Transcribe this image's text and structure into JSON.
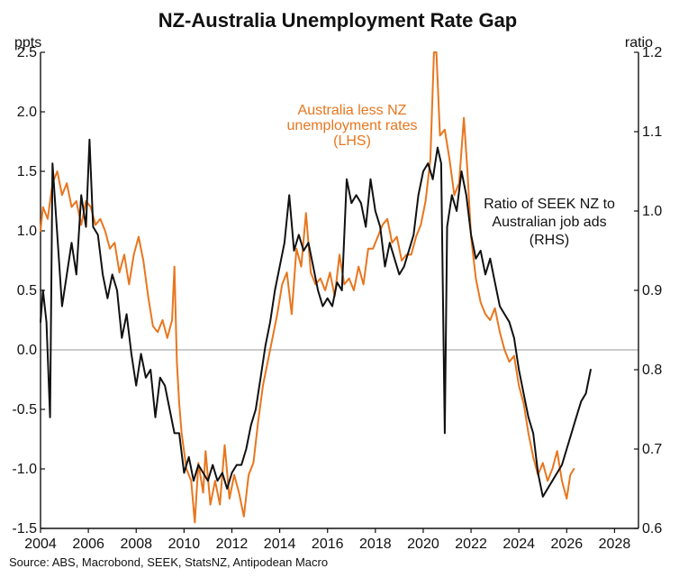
{
  "chart_data": {
    "type": "line",
    "title": "NZ-Australia Unemployment Rate Gap",
    "left_axis": {
      "unit": "ppts",
      "ylim": [
        -1.5,
        2.5
      ],
      "ticks": [
        "2.5",
        "2.0",
        "1.5",
        "1.0",
        "0.5",
        "0.0",
        "-0.5",
        "-1.0",
        "-1.5"
      ]
    },
    "right_axis": {
      "unit": "ratio",
      "ylim": [
        0.6,
        1.2
      ],
      "ticks": [
        "1.2",
        "1.1",
        "1.0",
        "0.9",
        "0.8",
        "0.7",
        "0.6"
      ]
    },
    "x_axis": {
      "xlim": [
        2004,
        2029
      ],
      "ticks": [
        "2004",
        "2006",
        "2008",
        "2010",
        "2012",
        "2014",
        "2016",
        "2018",
        "2020",
        "2022",
        "2024",
        "2026",
        "2028"
      ]
    },
    "series": [
      {
        "label": "Australia less NZ unemployment rates (LHS)",
        "axis": "left",
        "color": "#e8761e",
        "points": [
          [
            2004.0,
            1.0
          ],
          [
            2004.1,
            1.2
          ],
          [
            2004.3,
            1.1
          ],
          [
            2004.5,
            1.4
          ],
          [
            2004.7,
            1.5
          ],
          [
            2004.9,
            1.3
          ],
          [
            2005.1,
            1.4
          ],
          [
            2005.3,
            1.2
          ],
          [
            2005.5,
            1.25
          ],
          [
            2005.7,
            1.05
          ],
          [
            2005.9,
            1.25
          ],
          [
            2006.1,
            1.2
          ],
          [
            2006.3,
            1.05
          ],
          [
            2006.5,
            1.1
          ],
          [
            2006.7,
            1.0
          ],
          [
            2006.9,
            0.85
          ],
          [
            2007.1,
            0.9
          ],
          [
            2007.3,
            0.65
          ],
          [
            2007.5,
            0.8
          ],
          [
            2007.7,
            0.55
          ],
          [
            2007.9,
            0.8
          ],
          [
            2008.1,
            0.95
          ],
          [
            2008.3,
            0.75
          ],
          [
            2008.5,
            0.45
          ],
          [
            2008.7,
            0.2
          ],
          [
            2008.9,
            0.15
          ],
          [
            2009.1,
            0.25
          ],
          [
            2009.3,
            0.1
          ],
          [
            2009.5,
            0.25
          ],
          [
            2009.6,
            0.7
          ],
          [
            2009.7,
            -0.1
          ],
          [
            2009.8,
            -0.45
          ],
          [
            2009.9,
            -0.7
          ],
          [
            2010.1,
            -1.0
          ],
          [
            2010.3,
            -1.1
          ],
          [
            2010.45,
            -1.45
          ],
          [
            2010.6,
            -0.95
          ],
          [
            2010.8,
            -1.2
          ],
          [
            2010.9,
            -0.85
          ],
          [
            2011.1,
            -1.3
          ],
          [
            2011.3,
            -1.1
          ],
          [
            2011.5,
            -1.3
          ],
          [
            2011.7,
            -0.8
          ],
          [
            2011.9,
            -1.25
          ],
          [
            2012.1,
            -1.05
          ],
          [
            2012.3,
            -1.2
          ],
          [
            2012.5,
            -1.4
          ],
          [
            2012.7,
            -1.05
          ],
          [
            2012.9,
            -0.95
          ],
          [
            2013.1,
            -0.6
          ],
          [
            2013.3,
            -0.3
          ],
          [
            2013.5,
            -0.1
          ],
          [
            2013.7,
            0.1
          ],
          [
            2013.9,
            0.3
          ],
          [
            2014.1,
            0.55
          ],
          [
            2014.3,
            0.65
          ],
          [
            2014.5,
            0.3
          ],
          [
            2014.7,
            0.85
          ],
          [
            2014.9,
            0.7
          ],
          [
            2015.1,
            1.15
          ],
          [
            2015.3,
            0.65
          ],
          [
            2015.5,
            0.55
          ],
          [
            2015.7,
            0.6
          ],
          [
            2015.9,
            0.5
          ],
          [
            2016.1,
            0.65
          ],
          [
            2016.3,
            0.45
          ],
          [
            2016.5,
            0.8
          ],
          [
            2016.7,
            0.55
          ],
          [
            2016.9,
            0.6
          ],
          [
            2017.1,
            0.5
          ],
          [
            2017.3,
            0.7
          ],
          [
            2017.5,
            0.55
          ],
          [
            2017.7,
            0.85
          ],
          [
            2017.9,
            0.85
          ],
          [
            2018.1,
            0.95
          ],
          [
            2018.3,
            1.05
          ],
          [
            2018.5,
            1.1
          ],
          [
            2018.7,
            0.9
          ],
          [
            2018.9,
            0.95
          ],
          [
            2019.1,
            0.75
          ],
          [
            2019.3,
            0.8
          ],
          [
            2019.5,
            0.8
          ],
          [
            2019.7,
            0.95
          ],
          [
            2019.9,
            1.05
          ],
          [
            2020.1,
            1.25
          ],
          [
            2020.3,
            1.6
          ],
          [
            2020.45,
            2.5
          ],
          [
            2020.55,
            2.55
          ],
          [
            2020.7,
            1.8
          ],
          [
            2020.9,
            1.85
          ],
          [
            2021.1,
            1.6
          ],
          [
            2021.3,
            1.3
          ],
          [
            2021.5,
            1.4
          ],
          [
            2021.7,
            1.95
          ],
          [
            2021.85,
            1.5
          ],
          [
            2022.0,
            0.95
          ],
          [
            2022.2,
            0.6
          ],
          [
            2022.4,
            0.4
          ],
          [
            2022.6,
            0.3
          ],
          [
            2022.8,
            0.25
          ],
          [
            2023.0,
            0.35
          ],
          [
            2023.2,
            0.15
          ],
          [
            2023.4,
            0.0
          ],
          [
            2023.6,
            -0.1
          ],
          [
            2023.8,
            -0.05
          ],
          [
            2024.0,
            -0.3
          ],
          [
            2024.2,
            -0.45
          ],
          [
            2024.4,
            -0.7
          ],
          [
            2024.6,
            -0.9
          ],
          [
            2024.8,
            -1.05
          ],
          [
            2025.0,
            -0.95
          ],
          [
            2025.2,
            -1.1
          ],
          [
            2025.4,
            -1.0
          ],
          [
            2025.6,
            -0.85
          ],
          [
            2025.8,
            -1.1
          ],
          [
            2026.0,
            -1.25
          ],
          [
            2026.15,
            -1.05
          ],
          [
            2026.3,
            -1.0
          ]
        ]
      },
      {
        "label": "Ratio of SEEK NZ to Australian job ads (RHS)",
        "axis": "right",
        "color": "#111111",
        "points": [
          [
            2004.0,
            0.86
          ],
          [
            2004.1,
            0.9
          ],
          [
            2004.25,
            0.86
          ],
          [
            2004.4,
            0.74
          ],
          [
            2004.5,
            1.06
          ],
          [
            2004.7,
            0.97
          ],
          [
            2004.9,
            0.88
          ],
          [
            2005.1,
            0.92
          ],
          [
            2005.3,
            0.96
          ],
          [
            2005.5,
            0.92
          ],
          [
            2005.7,
            1.02
          ],
          [
            2005.9,
            0.98
          ],
          [
            2006.05,
            1.09
          ],
          [
            2006.2,
            0.98
          ],
          [
            2006.4,
            0.97
          ],
          [
            2006.6,
            0.92
          ],
          [
            2006.8,
            0.89
          ],
          [
            2007.0,
            0.92
          ],
          [
            2007.2,
            0.9
          ],
          [
            2007.4,
            0.84
          ],
          [
            2007.6,
            0.87
          ],
          [
            2007.8,
            0.82
          ],
          [
            2008.0,
            0.78
          ],
          [
            2008.2,
            0.82
          ],
          [
            2008.4,
            0.79
          ],
          [
            2008.6,
            0.8
          ],
          [
            2008.8,
            0.74
          ],
          [
            2009.0,
            0.79
          ],
          [
            2009.2,
            0.78
          ],
          [
            2009.4,
            0.75
          ],
          [
            2009.6,
            0.72
          ],
          [
            2009.8,
            0.72
          ],
          [
            2010.0,
            0.67
          ],
          [
            2010.2,
            0.69
          ],
          [
            2010.4,
            0.66
          ],
          [
            2010.6,
            0.68
          ],
          [
            2010.8,
            0.67
          ],
          [
            2011.0,
            0.66
          ],
          [
            2011.2,
            0.68
          ],
          [
            2011.4,
            0.66
          ],
          [
            2011.6,
            0.67
          ],
          [
            2011.8,
            0.65
          ],
          [
            2012.0,
            0.67
          ],
          [
            2012.2,
            0.68
          ],
          [
            2012.4,
            0.68
          ],
          [
            2012.6,
            0.7
          ],
          [
            2012.8,
            0.73
          ],
          [
            2013.0,
            0.75
          ],
          [
            2013.2,
            0.79
          ],
          [
            2013.4,
            0.83
          ],
          [
            2013.6,
            0.86
          ],
          [
            2013.8,
            0.9
          ],
          [
            2014.0,
            0.93
          ],
          [
            2014.2,
            0.96
          ],
          [
            2014.4,
            1.02
          ],
          [
            2014.6,
            0.95
          ],
          [
            2014.8,
            0.97
          ],
          [
            2015.0,
            0.95
          ],
          [
            2015.2,
            0.96
          ],
          [
            2015.4,
            0.93
          ],
          [
            2015.6,
            0.9
          ],
          [
            2015.8,
            0.88
          ],
          [
            2016.0,
            0.89
          ],
          [
            2016.2,
            0.88
          ],
          [
            2016.4,
            0.91
          ],
          [
            2016.6,
            0.9
          ],
          [
            2016.8,
            1.04
          ],
          [
            2017.0,
            1.01
          ],
          [
            2017.2,
            1.02
          ],
          [
            2017.4,
            1.01
          ],
          [
            2017.6,
            0.98
          ],
          [
            2017.8,
            1.04
          ],
          [
            2018.0,
            1.0
          ],
          [
            2018.2,
            0.98
          ],
          [
            2018.4,
            0.93
          ],
          [
            2018.6,
            0.96
          ],
          [
            2018.8,
            0.94
          ],
          [
            2019.0,
            0.92
          ],
          [
            2019.2,
            0.93
          ],
          [
            2019.4,
            0.95
          ],
          [
            2019.6,
            0.97
          ],
          [
            2019.8,
            1.02
          ],
          [
            2020.0,
            1.05
          ],
          [
            2020.2,
            1.06
          ],
          [
            2020.4,
            1.04
          ],
          [
            2020.6,
            1.08
          ],
          [
            2020.75,
            1.06
          ],
          [
            2020.9,
            0.72
          ],
          [
            2021.0,
            0.98
          ],
          [
            2021.2,
            1.02
          ],
          [
            2021.4,
            1.0
          ],
          [
            2021.6,
            1.05
          ],
          [
            2021.8,
            1.02
          ],
          [
            2022.0,
            0.97
          ],
          [
            2022.2,
            0.94
          ],
          [
            2022.4,
            0.95
          ],
          [
            2022.6,
            0.92
          ],
          [
            2022.8,
            0.94
          ],
          [
            2023.0,
            0.91
          ],
          [
            2023.2,
            0.88
          ],
          [
            2023.4,
            0.87
          ],
          [
            2023.6,
            0.86
          ],
          [
            2023.8,
            0.84
          ],
          [
            2024.0,
            0.8
          ],
          [
            2024.2,
            0.77
          ],
          [
            2024.4,
            0.74
          ],
          [
            2024.6,
            0.72
          ],
          [
            2024.8,
            0.67
          ],
          [
            2025.0,
            0.64
          ],
          [
            2025.2,
            0.65
          ],
          [
            2025.4,
            0.66
          ],
          [
            2025.6,
            0.67
          ],
          [
            2025.8,
            0.68
          ],
          [
            2026.0,
            0.7
          ],
          [
            2026.2,
            0.72
          ],
          [
            2026.4,
            0.74
          ],
          [
            2026.6,
            0.76
          ],
          [
            2026.8,
            0.77
          ],
          [
            2027.0,
            0.8
          ]
        ]
      }
    ],
    "annotations": {
      "orange": [
        "Australia less NZ",
        "unemployment rates",
        "(LHS)"
      ],
      "black": [
        "Ratio of SEEK NZ to",
        "Australian job ads",
        "(RHS)"
      ]
    },
    "source": "Source: ABS, Macrobond, SEEK, StatsNZ, Antipodean Macro"
  }
}
